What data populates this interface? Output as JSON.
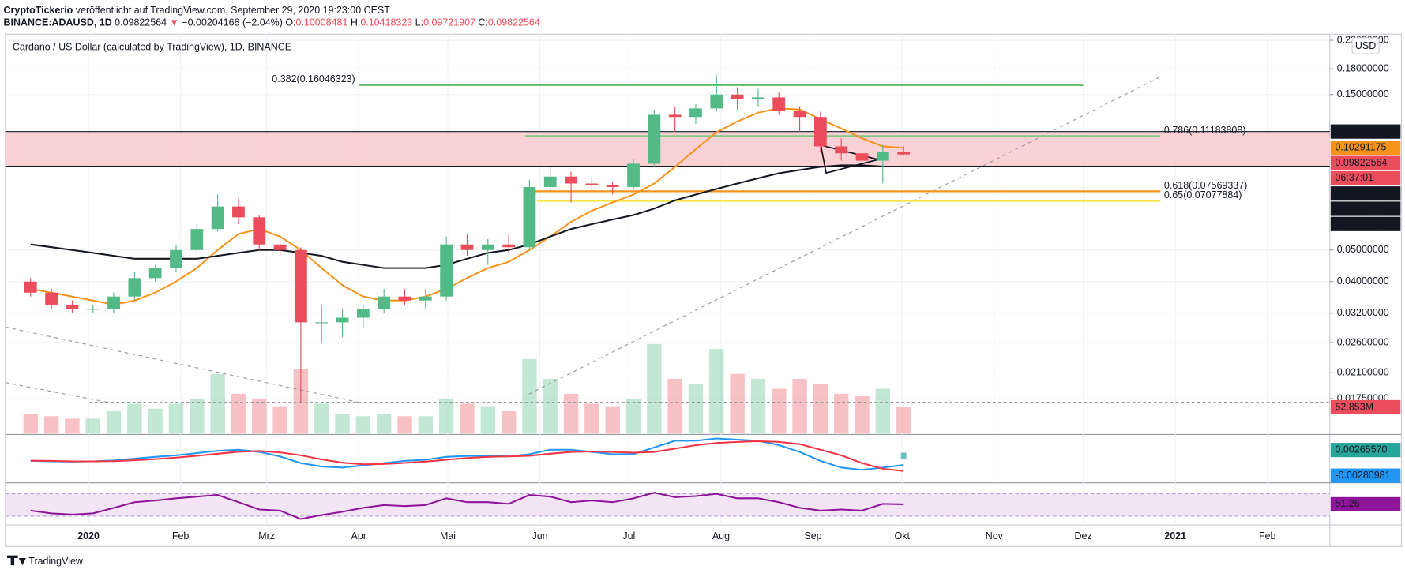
{
  "header": {
    "author": "CryptoTickerio",
    "published": " veröffentlicht auf TradingView.com, September 29, 2020 19:23:00 CEST",
    "symbol": "BINANCE:ADAUSD, 1D",
    "arrow": "▼",
    "change": "−0.00204168 (−2.04%)",
    "ohlc_labels": [
      "O:",
      "H:",
      "L:",
      "C:"
    ]
  },
  "chart_data": {
    "type": "candlestick",
    "title": "Cardano / US Dollar (calculated by TradingView), 1D, BINANCE",
    "currency": "USD",
    "x": [
      "2019-12-09",
      "2019-12-16",
      "2019-12-23",
      "2019-12-30",
      "2020-01-06",
      "2020-01-13",
      "2020-01-20",
      "2020-01-27",
      "2020-02-03",
      "2020-02-10",
      "2020-02-17",
      "2020-02-24",
      "2020-03-02",
      "2020-03-09",
      "2020-03-16",
      "2020-03-23",
      "2020-03-30",
      "2020-04-06",
      "2020-04-13",
      "2020-04-20",
      "2020-04-27",
      "2020-05-04",
      "2020-05-11",
      "2020-05-18",
      "2020-05-25",
      "2020-06-01",
      "2020-06-08",
      "2020-06-15",
      "2020-06-22",
      "2020-06-29",
      "2020-07-06",
      "2020-07-13",
      "2020-07-20",
      "2020-07-27",
      "2020-08-03",
      "2020-08-10",
      "2020-08-17",
      "2020-08-24",
      "2020-08-31",
      "2020-09-07",
      "2020-09-14",
      "2020-09-21",
      "2020-09-28"
    ],
    "open": [
      0.04,
      0.037,
      0.034,
      0.033,
      0.033,
      0.036,
      0.041,
      0.044,
      0.05,
      0.058,
      0.068,
      0.063,
      0.052,
      0.05,
      0.03,
      0.03,
      0.031,
      0.033,
      0.036,
      0.035,
      0.036,
      0.052,
      0.05,
      0.052,
      0.051,
      0.078,
      0.084,
      0.08,
      0.079,
      0.078,
      0.092,
      0.13,
      0.128,
      0.136,
      0.15,
      0.145,
      0.147,
      0.134,
      0.128,
      0.104,
      0.099,
      0.094,
      0.10008481
    ],
    "high": [
      0.041,
      0.038,
      0.035,
      0.034,
      0.037,
      0.043,
      0.045,
      0.052,
      0.06,
      0.074,
      0.072,
      0.064,
      0.055,
      0.051,
      0.034,
      0.033,
      0.034,
      0.038,
      0.038,
      0.038,
      0.055,
      0.056,
      0.054,
      0.056,
      0.082,
      0.09,
      0.087,
      0.084,
      0.081,
      0.095,
      0.135,
      0.138,
      0.14,
      0.172,
      0.158,
      0.156,
      0.152,
      0.138,
      0.133,
      0.11,
      0.101,
      0.105,
      0.10418323
    ],
    "low": [
      0.036,
      0.033,
      0.032,
      0.032,
      0.032,
      0.035,
      0.04,
      0.043,
      0.049,
      0.057,
      0.06,
      0.05,
      0.048,
      0.017,
      0.026,
      0.027,
      0.029,
      0.032,
      0.034,
      0.033,
      0.035,
      0.048,
      0.045,
      0.049,
      0.05,
      0.076,
      0.07,
      0.076,
      0.074,
      0.077,
      0.09,
      0.115,
      0.122,
      0.134,
      0.135,
      0.138,
      0.13,
      0.115,
      0.1,
      0.094,
      0.093,
      0.08,
      0.09721907
    ],
    "close": [
      0.037,
      0.034,
      0.033,
      0.033,
      0.036,
      0.041,
      0.044,
      0.05,
      0.058,
      0.068,
      0.063,
      0.052,
      0.05,
      0.03,
      0.03,
      0.031,
      0.033,
      0.036,
      0.035,
      0.036,
      0.052,
      0.05,
      0.052,
      0.051,
      0.078,
      0.084,
      0.08,
      0.079,
      0.078,
      0.092,
      0.13,
      0.128,
      0.136,
      0.15,
      0.145,
      0.147,
      0.134,
      0.128,
      0.104,
      0.099,
      0.094,
      0.1,
      0.09822564
    ],
    "up_color": "#53b987",
    "down_color": "#eb4d5c",
    "xlim": [
      "2019-12-04",
      "2021-02-22"
    ],
    "ylim": [
      0.01367,
      0.2298
    ],
    "log_scale": true,
    "grid": true,
    "yticks": [
      {
        "value": 0.22,
        "label": "0.22000000"
      },
      {
        "value": 0.18,
        "label": "0.18000000"
      },
      {
        "value": 0.15,
        "label": "0.15000000"
      },
      {
        "value": 0.05,
        "label": "0.05000000"
      },
      {
        "value": 0.04,
        "label": "0.04000000"
      },
      {
        "value": 0.032,
        "label": "0.03200000"
      },
      {
        "value": 0.026,
        "label": "0.02600000"
      },
      {
        "value": 0.021,
        "label": "0.02100000"
      },
      {
        "value": 0.0175,
        "label": "0.01750000"
      }
    ],
    "xticks": [
      {
        "value": "2020-01-01",
        "label": "2020"
      },
      {
        "value": "2020-02-01",
        "label": "Feb"
      },
      {
        "value": "2020-03-01",
        "label": "Mrz"
      },
      {
        "value": "2020-04-01",
        "label": "Apr"
      },
      {
        "value": "2020-05-01",
        "label": "Mai"
      },
      {
        "value": "2020-06-01",
        "label": "Jun"
      },
      {
        "value": "2020-07-01",
        "label": "Jul"
      },
      {
        "value": "2020-08-01",
        "label": "Aug"
      },
      {
        "value": "2020-09-01",
        "label": "Sep"
      },
      {
        "value": "2020-10-01",
        "label": "Okt"
      },
      {
        "value": "2020-11-01",
        "label": "Nov"
      },
      {
        "value": "2020-12-01",
        "label": "Dez"
      },
      {
        "value": "2021-01-01",
        "label": "2021"
      },
      {
        "value": "2021-02-01",
        "label": "Feb"
      }
    ],
    "overlays": [
      {
        "color": "#f7931a",
        "values": [
          0.038,
          0.037,
          0.036,
          0.035,
          0.034,
          0.035,
          0.037,
          0.04,
          0.044,
          0.05,
          0.056,
          0.058,
          0.055,
          0.05,
          0.044,
          0.039,
          0.036,
          0.035,
          0.035,
          0.036,
          0.038,
          0.041,
          0.044,
          0.046,
          0.05,
          0.055,
          0.061,
          0.066,
          0.07,
          0.074,
          0.08,
          0.09,
          0.102,
          0.115,
          0.124,
          0.132,
          0.136,
          0.135,
          0.126,
          0.118,
          0.11,
          0.104,
          0.10291175
        ]
      },
      {
        "color": "#131722",
        "values": [
          0.052,
          0.051,
          0.05,
          0.049,
          0.048,
          0.047,
          0.047,
          0.047,
          0.047,
          0.048,
          0.049,
          0.05,
          0.05,
          0.049,
          0.048,
          0.046,
          0.045,
          0.044,
          0.044,
          0.044,
          0.045,
          0.047,
          0.049,
          0.05,
          0.052,
          0.055,
          0.058,
          0.06,
          0.062,
          0.064,
          0.067,
          0.071,
          0.074,
          0.077,
          0.08,
          0.083,
          0.086,
          0.088,
          0.09,
          0.091,
          0.091,
          0.0902,
          0.09019049
        ]
      }
    ],
    "zone": {
      "from": 0.09040563,
      "to": 0.11548143,
      "color": "#f9c9cc"
    },
    "price_lines": [
      {
        "value": 0.11548143,
        "color": "#131722"
      },
      {
        "value": 0.10291175,
        "color": "#f7931a"
      },
      {
        "value": 0.09040563,
        "color": "#131722"
      },
      {
        "value": 0.09019049,
        "color": "#131722"
      },
      {
        "value": 0.07476008,
        "color": "#131722"
      }
    ],
    "countdown": "06:37:01",
    "fib_levels": [
      {
        "label": "0.382(0.16046323)",
        "value": 0.16046323,
        "from": "2020-04-01",
        "to": "2020-12-01",
        "color": "#66bb6a",
        "label_side": "left"
      },
      {
        "label": "0.786(0.11183808)",
        "value": 0.11183808,
        "from": "2020-05-27",
        "to": "2020-12-27",
        "color": "#81c784",
        "label_side": "right"
      },
      {
        "label": "0.618(0.07569337)",
        "value": 0.07569337,
        "from": "2020-05-27",
        "to": "2020-12-27",
        "color": "#f7931a",
        "label_side": "right"
      },
      {
        "label": "0.65(0.07077884)",
        "value": 0.07077884,
        "from": "2020-05-31",
        "to": "2020-12-27",
        "color": "#f5e642",
        "label_side": "right"
      }
    ],
    "volume": {
      "values": [
        40,
        35,
        30,
        30,
        45,
        60,
        50,
        60,
        70,
        120,
        80,
        70,
        55,
        130,
        60,
        40,
        35,
        40,
        35,
        35,
        70,
        60,
        55,
        45,
        150,
        110,
        80,
        60,
        55,
        70,
        180,
        110,
        100,
        170,
        120,
        110,
        90,
        110,
        100,
        80,
        75,
        90,
        52.853
      ],
      "value_labels": [
        null,
        null,
        null,
        null,
        null,
        null,
        null,
        null,
        null,
        null,
        null,
        null,
        null,
        null,
        null,
        null,
        null,
        null,
        null,
        null,
        null,
        null,
        null,
        null,
        null,
        null,
        null,
        null,
        null,
        null,
        null,
        null,
        null,
        null,
        null,
        null,
        null,
        null,
        null,
        null,
        null,
        null,
        "52.853M"
      ]
    },
    "macd": {
      "macd": [
        -0.001,
        -0.0012,
        -0.0013,
        -0.0012,
        -0.0008,
        0,
        0.0008,
        0.0015,
        0.0025,
        0.0035,
        0.004,
        0.003,
        0.001,
        -0.002,
        -0.0035,
        -0.004,
        -0.003,
        -0.002,
        -0.001,
        -0.0005,
        0.0008,
        0.0012,
        0.0012,
        0.001,
        0.002,
        0.004,
        0.004,
        0.003,
        0.002,
        0.002,
        0.005,
        0.008,
        0.008,
        0.009,
        0.0085,
        0.008,
        0.006,
        0.003,
        -0.001,
        -0.004,
        -0.005,
        -0.004,
        -0.00280981
      ],
      "signal": [
        -0.0009,
        -0.001,
        -0.0012,
        -0.0012,
        -0.0011,
        -0.0007,
        -0.0002,
        0.0005,
        0.0013,
        0.0022,
        0.0031,
        0.0034,
        0.0028,
        0.0015,
        -0.0003,
        -0.0018,
        -0.0025,
        -0.0024,
        -0.0019,
        -0.0013,
        -0.0005,
        0.0003,
        0.0008,
        0.001,
        0.0013,
        0.0022,
        0.003,
        0.0032,
        0.003,
        0.0027,
        0.003,
        0.0045,
        0.006,
        0.007,
        0.0075,
        0.0078,
        0.0075,
        0.0065,
        0.004,
        0.0015,
        -0.002,
        -0.0045,
        -0.0055
      ],
      "histogram_last": {
        "value": 0.0026557,
        "label": "0.00265570"
      },
      "macd_color": "#2196f3",
      "signal_color": "#f23645",
      "hist_color": "#26a69a"
    },
    "rsi": {
      "values": [
        40,
        35,
        33,
        35,
        45,
        55,
        58,
        62,
        65,
        68,
        55,
        42,
        40,
        25,
        32,
        38,
        45,
        50,
        48,
        50,
        62,
        55,
        55,
        52,
        68,
        65,
        55,
        58,
        55,
        62,
        72,
        64,
        66,
        70,
        62,
        62,
        55,
        45,
        40,
        42,
        40,
        52,
        51.26
      ],
      "bands": [
        30,
        70
      ],
      "color": "#8e1599"
    }
  },
  "footer": "TradingView"
}
